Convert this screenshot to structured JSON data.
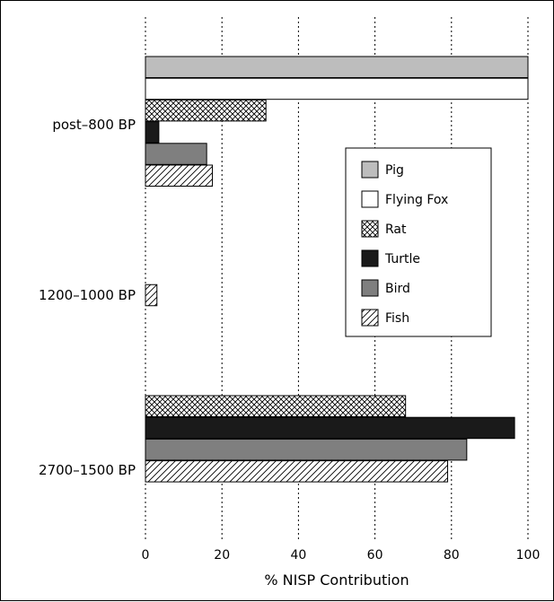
{
  "chart_data": {
    "type": "bar",
    "orientation": "horizontal",
    "xlabel": "% NISP Contribution",
    "xlim": [
      0,
      100
    ],
    "xticks": [
      0,
      20,
      40,
      60,
      80,
      100
    ],
    "grid": "vertical dotted at x ticks",
    "legend_position": "right-middle",
    "categories": [
      "post–800 BP",
      "1200–1000 BP",
      "2700–1500 BP"
    ],
    "series": [
      {
        "name": "Pig",
        "pattern": "solid",
        "color": "#bdbdbd",
        "values": [
          100,
          null,
          null
        ]
      },
      {
        "name": "Flying Fox",
        "pattern": "solid",
        "color": "#ffffff",
        "values": [
          100,
          null,
          null
        ]
      },
      {
        "name": "Rat",
        "pattern": "crosshatch",
        "color": "#ffffff",
        "values": [
          31.5,
          null,
          68
        ]
      },
      {
        "name": "Turtle",
        "pattern": "solid",
        "color": "#1a1a1a",
        "values": [
          3.5,
          null,
          96.5
        ]
      },
      {
        "name": "Bird",
        "pattern": "solid",
        "color": "#7f7f7f",
        "values": [
          16,
          null,
          84
        ]
      },
      {
        "name": "Fish",
        "pattern": "diagonal",
        "color": "#ffffff",
        "values": [
          17.5,
          3,
          79
        ]
      }
    ]
  }
}
